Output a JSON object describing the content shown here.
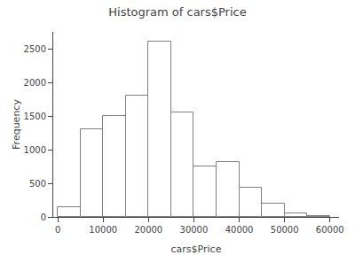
{
  "chart_data": {
    "type": "histogram",
    "title": "Histogram of cars$Price",
    "x_label": "cars$Price",
    "y_label": "Frequency",
    "bins": [
      0,
      5000,
      10000,
      15000,
      20000,
      25000,
      30000,
      35000,
      40000,
      45000,
      50000,
      55000,
      60000
    ],
    "values": [
      150,
      1300,
      1500,
      1800,
      2600,
      1550,
      750,
      820,
      430,
      200,
      50,
      10
    ],
    "color": "#ffffff",
    "xlim": [
      -1000,
      62000
    ],
    "ylim": [
      0,
      2750
    ],
    "xticks": [
      0,
      10000,
      20000,
      30000,
      40000,
      50000,
      60000
    ],
    "yticks": [
      0,
      500,
      1000,
      1500,
      2000,
      2500
    ],
    "grid": false
  }
}
